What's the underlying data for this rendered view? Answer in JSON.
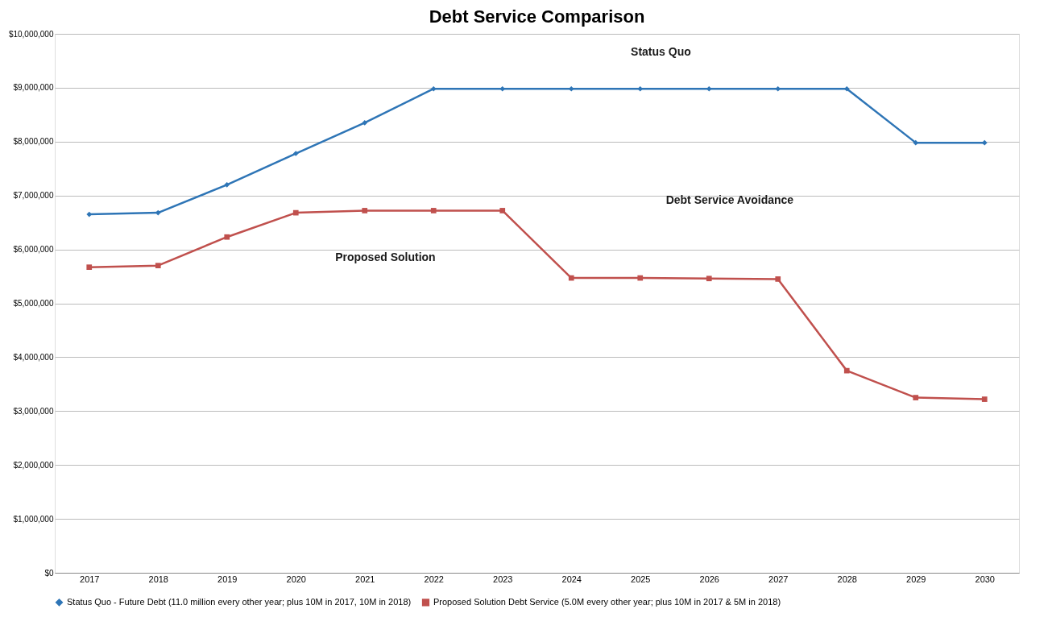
{
  "chart_data": {
    "type": "line",
    "title": "Debt Service Comparison",
    "categories": [
      "2017",
      "2018",
      "2019",
      "2020",
      "2021",
      "2022",
      "2023",
      "2024",
      "2025",
      "2026",
      "2027",
      "2028",
      "2029",
      "2030"
    ],
    "series": [
      {
        "name": "Status Quo - Future Debt (11.0 million every other year; plus 10M in 2017, 10M in 2018)",
        "color": "#2e75b6",
        "marker": "diamond",
        "values": [
          6650000,
          6680000,
          7200000,
          7780000,
          8350000,
          8980000,
          8980000,
          8980000,
          8980000,
          8980000,
          8980000,
          8980000,
          7980000,
          7980000
        ]
      },
      {
        "name": "Proposed Solution Debt Service (5.0M every other year; plus 10M in 2017 & 5M in 2018)",
        "color": "#c0504d",
        "marker": "square",
        "values": [
          5670000,
          5700000,
          6230000,
          6680000,
          6720000,
          6720000,
          6720000,
          5470000,
          5470000,
          5460000,
          5450000,
          3750000,
          3250000,
          3220000
        ]
      }
    ],
    "ylim": [
      0,
      10000000
    ],
    "yticks": [
      {
        "value": 0,
        "label": "$0"
      },
      {
        "value": 1000000,
        "label": "$1,000,000"
      },
      {
        "value": 2000000,
        "label": "$2,000,000"
      },
      {
        "value": 3000000,
        "label": "$3,000,000"
      },
      {
        "value": 4000000,
        "label": "$4,000,000"
      },
      {
        "value": 5000000,
        "label": "$5,000,000"
      },
      {
        "value": 6000000,
        "label": "$6,000,000"
      },
      {
        "value": 7000000,
        "label": "$7,000,000"
      },
      {
        "value": 8000000,
        "label": "$8,000,000"
      },
      {
        "value": 9000000,
        "label": "$9,000,000"
      },
      {
        "value": 10000000,
        "label": "$10,000,000"
      }
    ],
    "grid": "y",
    "legend": "bottom",
    "line_style": "solid",
    "annotations": [
      "Status Quo",
      "Debt Service Avoidance",
      "Proposed Solution"
    ]
  }
}
